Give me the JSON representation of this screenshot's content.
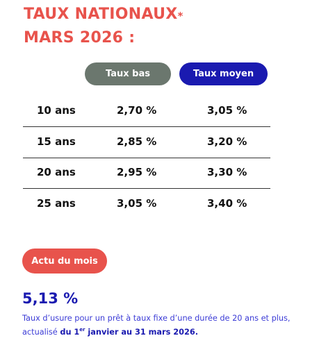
{
  "title": {
    "line1": "TAUX NATIONAUX",
    "asterisk": "*",
    "line2": "MARS 2026 :"
  },
  "columns": {
    "low": "Taux bas",
    "mid": "Taux moyen"
  },
  "rows": [
    {
      "duration": "10 ans",
      "low": "2,70 %",
      "mid": "3,05 %"
    },
    {
      "duration": "15 ans",
      "low": "2,85 %",
      "mid": "3,20 %"
    },
    {
      "duration": "20 ans",
      "low": "2,95 %",
      "mid": "3,30 %"
    },
    {
      "duration": "25 ans",
      "low": "3,05 %",
      "mid": "3,40 %"
    }
  ],
  "actu_button": "Actu du mois",
  "usure": {
    "rate": "5,13 %",
    "text": "Taux d’usure pour un prêt à taux fixe d’une durée de 20 ans et plus, actualisé ",
    "date_start": "du 1",
    "date_sup": "er",
    "date_end": " janvier au 31 mars 2026."
  },
  "colors": {
    "accent_red": "#e8534c",
    "accent_blue": "#1a1ab0",
    "pill_grey": "#6b776e"
  }
}
